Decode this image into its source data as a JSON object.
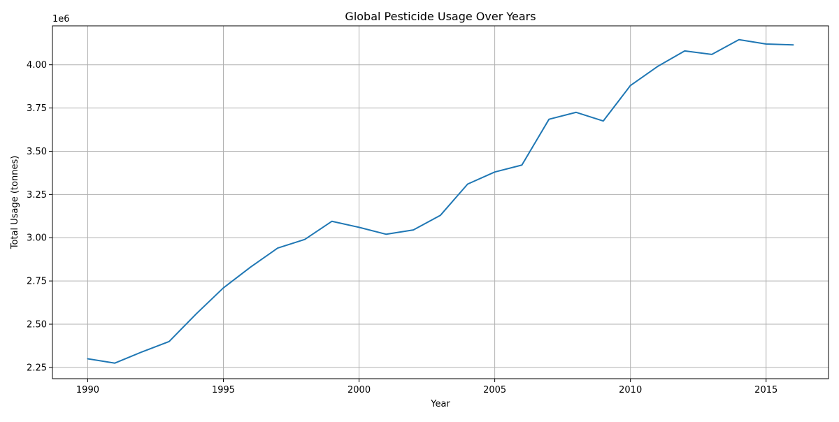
{
  "chart_data": {
    "type": "line",
    "title": "Global Pesticide Usage Over Years",
    "xlabel": "Year",
    "ylabel": "Total Usage (tonnes)",
    "y_offset_label": "1e6",
    "grid": true,
    "line_color": "#1f77b4",
    "xlim": [
      1988.7,
      2017.3
    ],
    "ylim": [
      2.185,
      4.225
    ],
    "x_ticks": [
      1990,
      1995,
      2000,
      2005,
      2010,
      2015
    ],
    "x_tick_labels": [
      "1990",
      "1995",
      "2000",
      "2005",
      "2010",
      "2015"
    ],
    "y_ticks": [
      2.25,
      2.5,
      2.75,
      3.0,
      3.25,
      3.5,
      3.75,
      4.0
    ],
    "y_tick_labels": [
      "2.25",
      "2.50",
      "2.75",
      "3.00",
      "3.25",
      "3.50",
      "3.75",
      "4.00"
    ],
    "series": [
      {
        "x": [
          1990,
          1991,
          1992,
          1993,
          1994,
          1995,
          1996,
          1997,
          1998,
          1999,
          2000,
          2001,
          2002,
          2003,
          2004,
          2005,
          2006,
          2007,
          2008,
          2009,
          2010,
          2011,
          2012,
          2013,
          2014,
          2015,
          2016
        ],
        "y": [
          2.3,
          2.275,
          2.34,
          2.4,
          2.56,
          2.71,
          2.83,
          2.94,
          2.99,
          3.095,
          3.06,
          3.02,
          3.045,
          3.13,
          3.31,
          3.38,
          3.42,
          3.685,
          3.725,
          3.675,
          3.88,
          3.99,
          4.08,
          4.06,
          4.145,
          4.12,
          4.115
        ]
      }
    ]
  }
}
